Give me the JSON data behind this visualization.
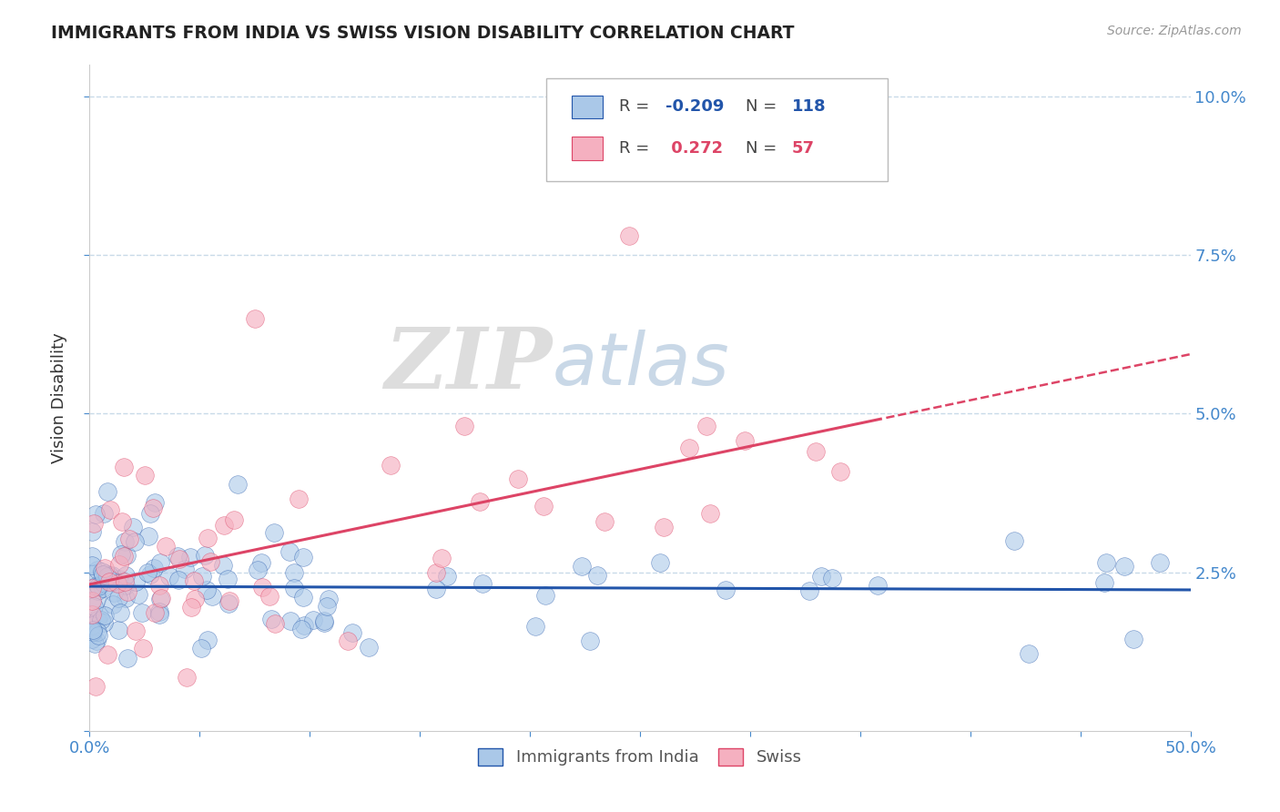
{
  "title": "IMMIGRANTS FROM INDIA VS SWISS VISION DISABILITY CORRELATION CHART",
  "source_text": "Source: ZipAtlas.com",
  "ylabel": "Vision Disability",
  "xlim": [
    0.0,
    0.5
  ],
  "ylim": [
    0.0,
    0.105
  ],
  "watermark_zip": "ZIP",
  "watermark_atlas": "atlas",
  "legend_blue_label": "Immigrants from India",
  "legend_pink_label": "Swiss",
  "blue_R": "-0.209",
  "blue_N": "118",
  "pink_R": " 0.272",
  "pink_N": "57",
  "blue_scatter_color": "#aac8e8",
  "pink_scatter_color": "#f5b0c0",
  "blue_line_color": "#2255aa",
  "pink_line_color": "#dd4466",
  "ylabel_color": "#333333",
  "axis_tick_color": "#4488cc",
  "grid_color": "#c8dae8",
  "background_color": "#ffffff",
  "legend_R_color_blue": "#2255aa",
  "legend_R_color_pink": "#dd4466",
  "legend_N_color": "#2255aa"
}
